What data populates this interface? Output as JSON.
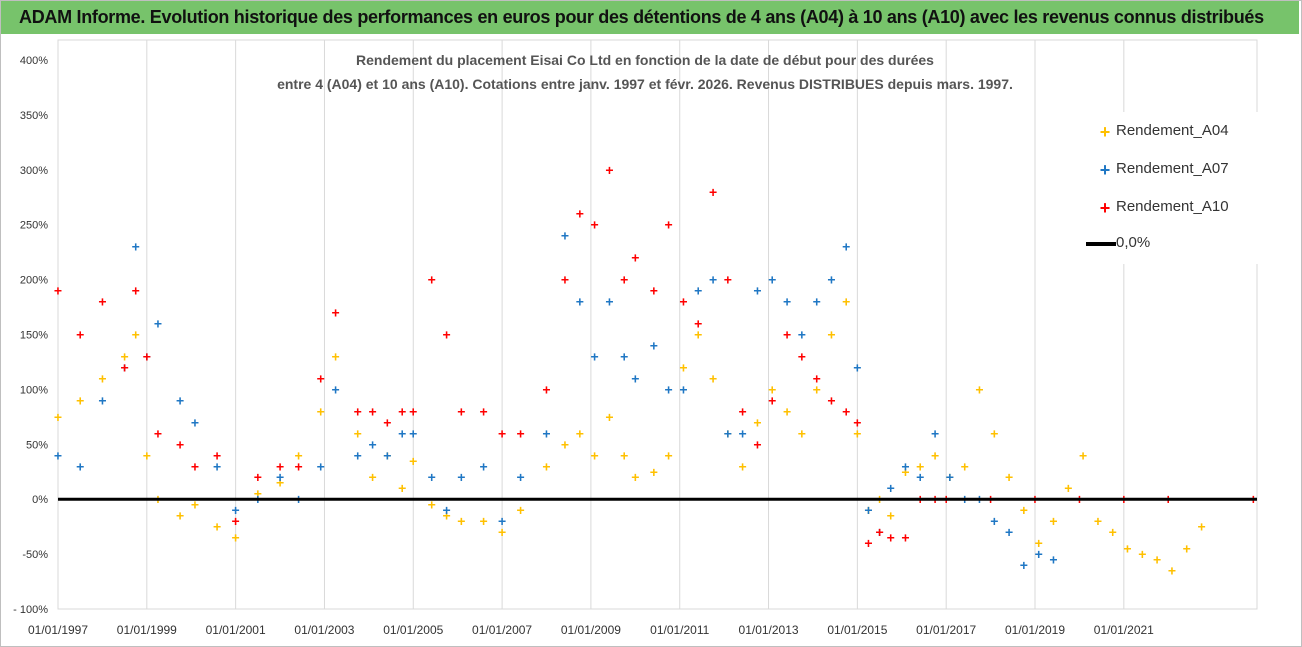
{
  "header": {
    "banner": "ADAM Informe. Evolution historique des performances en euros pour des détentions de 4 ans (A04) à 10 ans (A10) avec les revenus connus distribués"
  },
  "colors": {
    "banner_bg": "#77c36b",
    "A04": "#ffc000",
    "A07": "#1f77c4",
    "A10": "#ff0000",
    "zero_line": "#000000"
  },
  "chart_data": {
    "type": "scatter",
    "title": "Rendement du placement Eisai Co Ltd en fonction de la date de début pour des durées",
    "subtitle": "entre 4 (A04) et 10 ans (A10). Cotations entre janv. 1997 et févr.  2026. Revenus DISTRIBUES depuis mars. 1997.",
    "x_ticks": [
      "01/01/1997",
      "01/01/1999",
      "01/01/2001",
      "01/01/2003",
      "01/01/2005",
      "01/01/2007",
      "01/01/2009",
      "01/01/2011",
      "01/01/2013",
      "01/01/2015",
      "01/01/2017",
      "01/01/2019",
      "01/01/2021"
    ],
    "y_ticks": [
      "- 100%",
      "-50%",
      "0%",
      "50%",
      "100%",
      "150%",
      "200%",
      "250%",
      "300%",
      "350%",
      "400%"
    ],
    "ylim": [
      -100,
      400
    ],
    "xlim": [
      "1997-01-01",
      "2023-12-31"
    ],
    "y_unit": "%",
    "grid": "vertical",
    "legend_position": "top-right",
    "legend": [
      "Rendement_A04",
      "Rendement_A07",
      "Rendement_A10",
      "0,0%"
    ],
    "series": [
      {
        "name": "Rendement_A04",
        "marker": "+",
        "color": "#ffc000",
        "x": [
          "1997-01",
          "1997-07",
          "1998-01",
          "1998-07",
          "1998-10",
          "1999-01",
          "1999-04",
          "1999-10",
          "2000-02",
          "2000-08",
          "2001-01",
          "2001-07",
          "2002-01",
          "2002-06",
          "2002-12",
          "2003-04",
          "2003-10",
          "2004-02",
          "2004-06",
          "2004-10",
          "2005-01",
          "2005-06",
          "2005-10",
          "2006-02",
          "2006-08",
          "2007-01",
          "2007-06",
          "2008-01",
          "2008-06",
          "2008-10",
          "2009-02",
          "2009-06",
          "2009-10",
          "2010-01",
          "2010-06",
          "2010-10",
          "2011-02",
          "2011-06",
          "2011-10",
          "2012-02",
          "2012-06",
          "2012-10",
          "2013-02",
          "2013-06",
          "2013-10",
          "2014-02",
          "2014-06",
          "2014-10",
          "2015-01",
          "2015-04",
          "2015-07",
          "2015-10",
          "2016-02",
          "2016-06",
          "2016-10",
          "2017-02",
          "2017-06",
          "2017-10",
          "2018-02",
          "2018-06",
          "2018-10",
          "2019-02",
          "2019-06",
          "2019-10",
          "2020-02",
          "2020-06",
          "2020-10",
          "2021-02",
          "2021-06",
          "2021-10",
          "2022-02",
          "2022-06",
          "2022-10"
        ],
        "y": [
          75,
          90,
          110,
          130,
          150,
          40,
          0,
          -15,
          -5,
          -25,
          -35,
          5,
          15,
          40,
          80,
          130,
          60,
          20,
          40,
          10,
          35,
          -5,
          -15,
          -20,
          -20,
          -30,
          -10,
          30,
          50,
          60,
          40,
          75,
          40,
          20,
          25,
          40,
          120,
          150,
          110,
          60,
          30,
          70,
          100,
          80,
          60,
          100,
          150,
          180,
          60,
          -10,
          0,
          -15,
          25,
          30,
          40,
          20,
          30,
          100,
          60,
          20,
          -10,
          -40,
          -20,
          10,
          40,
          -20,
          -30,
          -45,
          -50,
          -55,
          -65,
          -45,
          -25
        ]
      },
      {
        "name": "Rendement_A07",
        "marker": "+",
        "color": "#1f77c4",
        "x": [
          "1997-01",
          "1997-07",
          "1998-01",
          "1998-07",
          "1998-10",
          "1999-01",
          "1999-04",
          "1999-10",
          "2000-02",
          "2000-08",
          "2001-01",
          "2001-07",
          "2002-01",
          "2002-06",
          "2002-12",
          "2003-04",
          "2003-10",
          "2004-02",
          "2004-06",
          "2004-10",
          "2005-01",
          "2005-06",
          "2005-10",
          "2006-02",
          "2006-08",
          "2007-01",
          "2007-06",
          "2008-01",
          "2008-06",
          "2008-10",
          "2009-02",
          "2009-06",
          "2009-10",
          "2010-01",
          "2010-06",
          "2010-10",
          "2011-02",
          "2011-06",
          "2011-10",
          "2012-02",
          "2012-06",
          "2012-10",
          "2013-02",
          "2013-06",
          "2013-10",
          "2014-02",
          "2014-06",
          "2014-10",
          "2015-01",
          "2015-04",
          "2015-07",
          "2015-10",
          "2016-02",
          "2016-06",
          "2016-10",
          "2017-02",
          "2017-06",
          "2017-10",
          "2018-02",
          "2018-06",
          "2018-10",
          "2019-02",
          "2019-06"
        ],
        "y": [
          40,
          30,
          90,
          120,
          230,
          130,
          160,
          90,
          70,
          30,
          -10,
          0,
          20,
          0,
          30,
          100,
          40,
          50,
          40,
          60,
          60,
          20,
          -10,
          20,
          30,
          -20,
          20,
          60,
          240,
          180,
          130,
          180,
          130,
          110,
          140,
          100,
          100,
          190,
          200,
          60,
          60,
          190,
          200,
          180,
          150,
          180,
          200,
          230,
          120,
          -10,
          -30,
          10,
          30,
          20,
          60,
          20,
          0,
          0,
          -20,
          -30,
          -60,
          -50,
          -55
        ]
      },
      {
        "name": "Rendement_A10",
        "marker": "+",
        "color": "#ff0000",
        "x": [
          "1997-01",
          "1997-07",
          "1998-01",
          "1998-07",
          "1998-10",
          "1999-01",
          "1999-04",
          "1999-10",
          "2000-02",
          "2000-08",
          "2001-01",
          "2001-07",
          "2002-01",
          "2002-06",
          "2002-12",
          "2003-04",
          "2003-10",
          "2004-02",
          "2004-06",
          "2004-10",
          "2005-01",
          "2005-06",
          "2005-10",
          "2006-02",
          "2006-08",
          "2007-01",
          "2007-06",
          "2008-01",
          "2008-06",
          "2008-10",
          "2009-02",
          "2009-06",
          "2009-10",
          "2010-01",
          "2010-06",
          "2010-10",
          "2011-02",
          "2011-06",
          "2011-10",
          "2012-02",
          "2012-06",
          "2012-10",
          "2013-02",
          "2013-06",
          "2013-10",
          "2014-02",
          "2014-06",
          "2014-10",
          "2015-01",
          "2015-04",
          "2015-07",
          "2015-10",
          "2016-02",
          "2016-06",
          "2016-10",
          "2017-01",
          "2018-01",
          "2019-01",
          "2020-01",
          "2021-01",
          "2022-01",
          "2023-12"
        ],
        "y": [
          190,
          150,
          180,
          120,
          190,
          130,
          60,
          50,
          30,
          40,
          -20,
          20,
          30,
          30,
          110,
          170,
          80,
          80,
          70,
          80,
          80,
          200,
          150,
          80,
          80,
          60,
          60,
          100,
          200,
          260,
          250,
          300,
          200,
          220,
          190,
          250,
          180,
          160,
          280,
          200,
          80,
          50,
          90,
          150,
          130,
          110,
          90,
          80,
          70,
          -40,
          -30,
          -35,
          -35,
          0,
          0,
          0,
          0,
          0,
          0,
          0,
          0,
          0
        ]
      },
      {
        "name": "0,0%",
        "type": "line",
        "color": "#000000",
        "x": [
          "1997-01-01",
          "2023-12-31"
        ],
        "y": [
          0,
          0
        ]
      }
    ]
  }
}
